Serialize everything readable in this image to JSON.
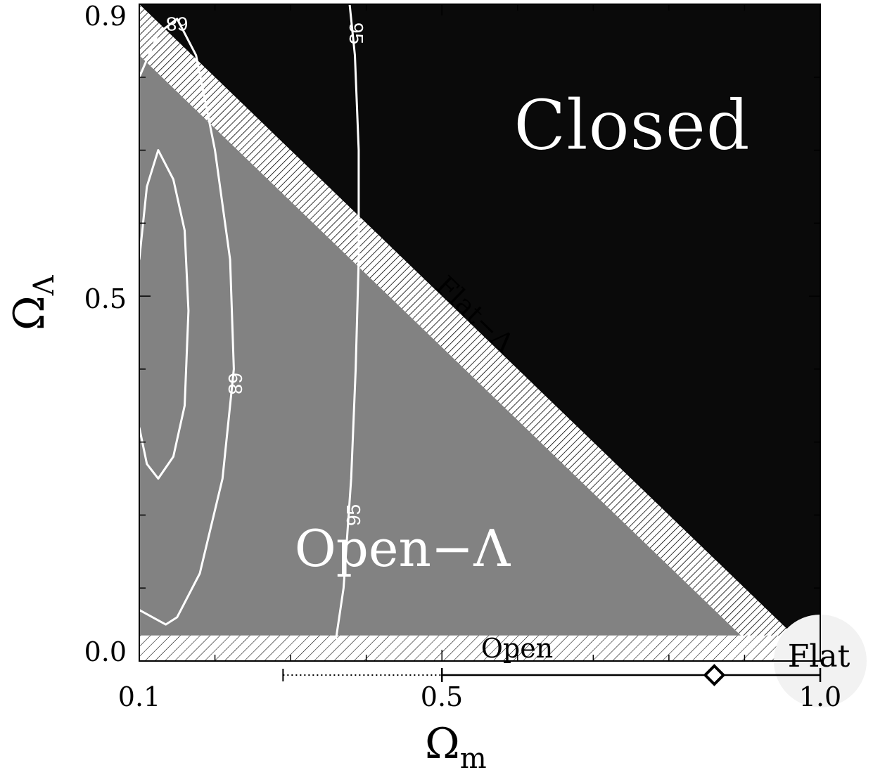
{
  "chart_data": {
    "type": "contour",
    "xlabel": "Ω",
    "xlabel_sub": "m",
    "ylabel": "Ω",
    "ylabel_sub": "Λ",
    "xlim": [
      0.1,
      1.0
    ],
    "ylim": [
      0.0,
      0.9
    ],
    "x_ticks": [
      {
        "value": 0.1,
        "label": "0.1"
      },
      {
        "value": 0.5,
        "label": "0.5"
      },
      {
        "value": 1.0,
        "label": "1.0"
      }
    ],
    "y_ticks": [
      {
        "value": 0.0,
        "label": "0.0"
      },
      {
        "value": 0.5,
        "label": "0.5"
      },
      {
        "value": 0.9,
        "label": "0.9"
      }
    ],
    "regions": [
      {
        "label": "Closed",
        "color": "#0a0a0a"
      },
      {
        "label": "Open−Λ",
        "color": "#828282"
      },
      {
        "label": "Flat−Λ",
        "color": "#ffffff"
      },
      {
        "label": "Open",
        "color": "#ffffff"
      },
      {
        "label": "Flat",
        "color": "#f2f2f2"
      }
    ],
    "contours": [
      {
        "level": "68",
        "points": [
          [
            0.1,
            0.55
          ],
          [
            0.11,
            0.65
          ],
          [
            0.125,
            0.7
          ],
          [
            0.145,
            0.66
          ],
          [
            0.16,
            0.59
          ],
          [
            0.165,
            0.48
          ],
          [
            0.16,
            0.35
          ],
          [
            0.145,
            0.28
          ],
          [
            0.125,
            0.25
          ],
          [
            0.11,
            0.27
          ],
          [
            0.1,
            0.32
          ]
        ]
      },
      {
        "level": "68",
        "points": [
          [
            0.1,
            0.8
          ],
          [
            0.125,
            0.86
          ],
          [
            0.15,
            0.88
          ],
          [
            0.175,
            0.83
          ],
          [
            0.2,
            0.7
          ],
          [
            0.22,
            0.55
          ],
          [
            0.225,
            0.4
          ],
          [
            0.21,
            0.25
          ],
          [
            0.18,
            0.12
          ],
          [
            0.15,
            0.06
          ],
          [
            0.135,
            0.05
          ],
          [
            0.1,
            0.07
          ]
        ]
      },
      {
        "level": "95",
        "points": [
          [
            0.378,
            0.9
          ],
          [
            0.385,
            0.83
          ],
          [
            0.39,
            0.7
          ],
          [
            0.39,
            0.55
          ],
          [
            0.386,
            0.4
          ],
          [
            0.38,
            0.25
          ],
          [
            0.37,
            0.1
          ],
          [
            0.36,
            0.03
          ]
        ]
      }
    ],
    "contour_labels": [
      {
        "text": "68",
        "x": 0.15,
        "y": 0.875,
        "rotate": 180
      },
      {
        "text": "68",
        "x": 0.225,
        "y": 0.38,
        "rotate": 90
      },
      {
        "text": "95",
        "x": 0.385,
        "y": 0.86,
        "rotate": 90
      },
      {
        "text": "95",
        "x": 0.385,
        "y": 0.2,
        "rotate": -90
      }
    ],
    "flat_lambda_band": {
      "lower_sum": 0.93,
      "upper_sum": 1.0
    },
    "open_band_y": [
      0.0,
      0.035
    ],
    "measurement": {
      "point": 0.86,
      "solid_range": [
        0.5,
        1.0
      ],
      "dotted_range": [
        0.29,
        0.5
      ]
    }
  }
}
